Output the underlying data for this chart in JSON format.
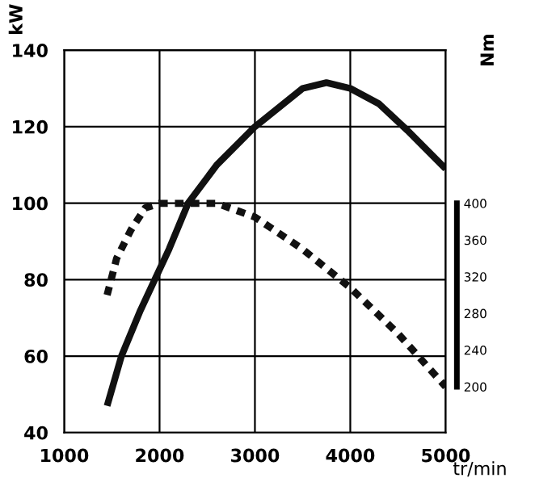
{
  "chart_data": {
    "type": "line",
    "xlabel": "tr/min",
    "ylabel": "kW",
    "y2label": "Nm",
    "xlim": [
      1000,
      5000
    ],
    "xticks": [
      1000,
      2000,
      3000,
      4000,
      5000
    ],
    "ylim": [
      40,
      140
    ],
    "yticks": [
      40,
      60,
      80,
      100,
      120,
      140
    ],
    "y2lim": [
      150,
      567
    ],
    "y2ticks": [
      200,
      240,
      280,
      320,
      360,
      400
    ],
    "grid": true,
    "legend": false,
    "marker": "none",
    "series": [
      {
        "color": "#111111",
        "line_style": "solid",
        "x": [
          1450,
          1600,
          1800,
          1950,
          2100,
          2300,
          2600,
          3000,
          3300,
          3500,
          3750,
          4000,
          4300,
          4600,
          5000
        ],
        "values": [
          47,
          60,
          72,
          80,
          88,
          100,
          110,
          120,
          126,
          130,
          131.5,
          130,
          126,
          119,
          109
        ]
      },
      {
        "color": "#111111",
        "line_style": "dotted",
        "axis": "y2",
        "x": [
          1450,
          1550,
          1700,
          1850,
          2000,
          2300,
          2600,
          3000,
          3500,
          4000,
          4500,
          5000
        ],
        "values": [
          300,
          340,
          371,
          395,
          400,
          400,
          400,
          385,
          350,
          308,
          258,
          200
        ]
      }
    ]
  }
}
